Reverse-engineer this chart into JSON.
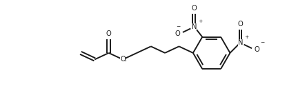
{
  "background": "#ffffff",
  "line_color": "#1a1a1a",
  "line_width": 1.4,
  "font_size": 7.2,
  "figsize": [
    4.32,
    1.38
  ],
  "dpi": 100,
  "xlim": [
    0,
    10.5
  ],
  "ylim": [
    0,
    3.5
  ]
}
